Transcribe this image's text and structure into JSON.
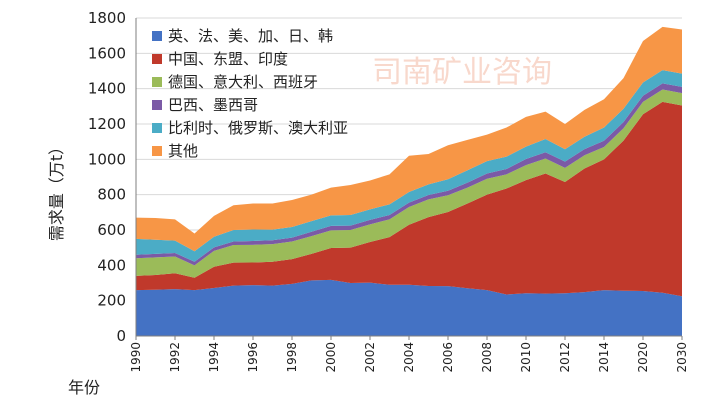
{
  "chart_data": {
    "type": "area",
    "stacked": true,
    "title": "",
    "ylabel": "需求量（万t）",
    "xlabel": "年份",
    "ylim": [
      0,
      1800
    ],
    "yticks": [
      0,
      200,
      400,
      600,
      800,
      1000,
      1200,
      1400,
      1600,
      1800
    ],
    "xticks": [
      "1990",
      "1992",
      "1994",
      "1996",
      "1998",
      "2000",
      "2002",
      "2004",
      "2006",
      "2008",
      "2010",
      "2012",
      "2014",
      "2020",
      "2030"
    ],
    "legend_position": "top-left-inside",
    "x": [
      "1990",
      "1991",
      "1992",
      "1993",
      "1994",
      "1995",
      "1996",
      "1997",
      "1998",
      "1999",
      "2000",
      "2001",
      "2002",
      "2003",
      "2004",
      "2005",
      "2006",
      "2007",
      "2008",
      "2009",
      "2010",
      "2011",
      "2012",
      "2013",
      "2014",
      "2015",
      "2020",
      "2025",
      "2030"
    ],
    "series": [
      {
        "name": "英、法、美、加、日、韩",
        "color": "#4472c4",
        "values": [
          260,
          262,
          265,
          260,
          272,
          285,
          288,
          285,
          295,
          315,
          318,
          300,
          302,
          290,
          290,
          283,
          282,
          270,
          260,
          235,
          242,
          240,
          242,
          248,
          260,
          256,
          255,
          245,
          225
        ]
      },
      {
        "name": "中国、东盟、印度",
        "color": "#c0392b",
        "values": [
          80,
          83,
          90,
          70,
          120,
          130,
          128,
          135,
          140,
          150,
          180,
          200,
          230,
          270,
          340,
          390,
          420,
          480,
          540,
          600,
          640,
          680,
          630,
          700,
          740,
          850,
          1000,
          1080,
          1080
        ]
      },
      {
        "name": "德国、意大利、西班牙",
        "color": "#9bbb59",
        "values": [
          100,
          100,
          95,
          70,
          90,
          100,
          100,
          100,
          100,
          100,
          100,
          100,
          100,
          100,
          100,
          100,
          95,
          90,
          90,
          80,
          85,
          85,
          80,
          75,
          70,
          70,
          70,
          70,
          70
        ]
      },
      {
        "name": "巴西、墨西哥",
        "color": "#7b5aa6",
        "values": [
          20,
          20,
          20,
          20,
          20,
          20,
          22,
          22,
          22,
          25,
          25,
          25,
          25,
          25,
          25,
          25,
          25,
          28,
          30,
          30,
          35,
          35,
          35,
          35,
          35,
          35,
          35,
          35,
          35
        ]
      },
      {
        "name": "比利时、俄罗斯、澳大利亚",
        "color": "#4bacc6",
        "values": [
          90,
          80,
          70,
          60,
          60,
          65,
          65,
          60,
          60,
          60,
          60,
          60,
          60,
          60,
          60,
          60,
          65,
          70,
          70,
          70,
          70,
          75,
          70,
          70,
          75,
          75,
          75,
          75,
          75
        ]
      },
      {
        "name": "其他",
        "color": "#f79646",
        "values": [
          120,
          123,
          120,
          100,
          118,
          140,
          147,
          148,
          153,
          150,
          157,
          170,
          163,
          170,
          205,
          172,
          193,
          172,
          150,
          165,
          168,
          155,
          143,
          152,
          160,
          174,
          235,
          245,
          250
        ]
      }
    ],
    "watermark": "司南矿业咨询"
  }
}
